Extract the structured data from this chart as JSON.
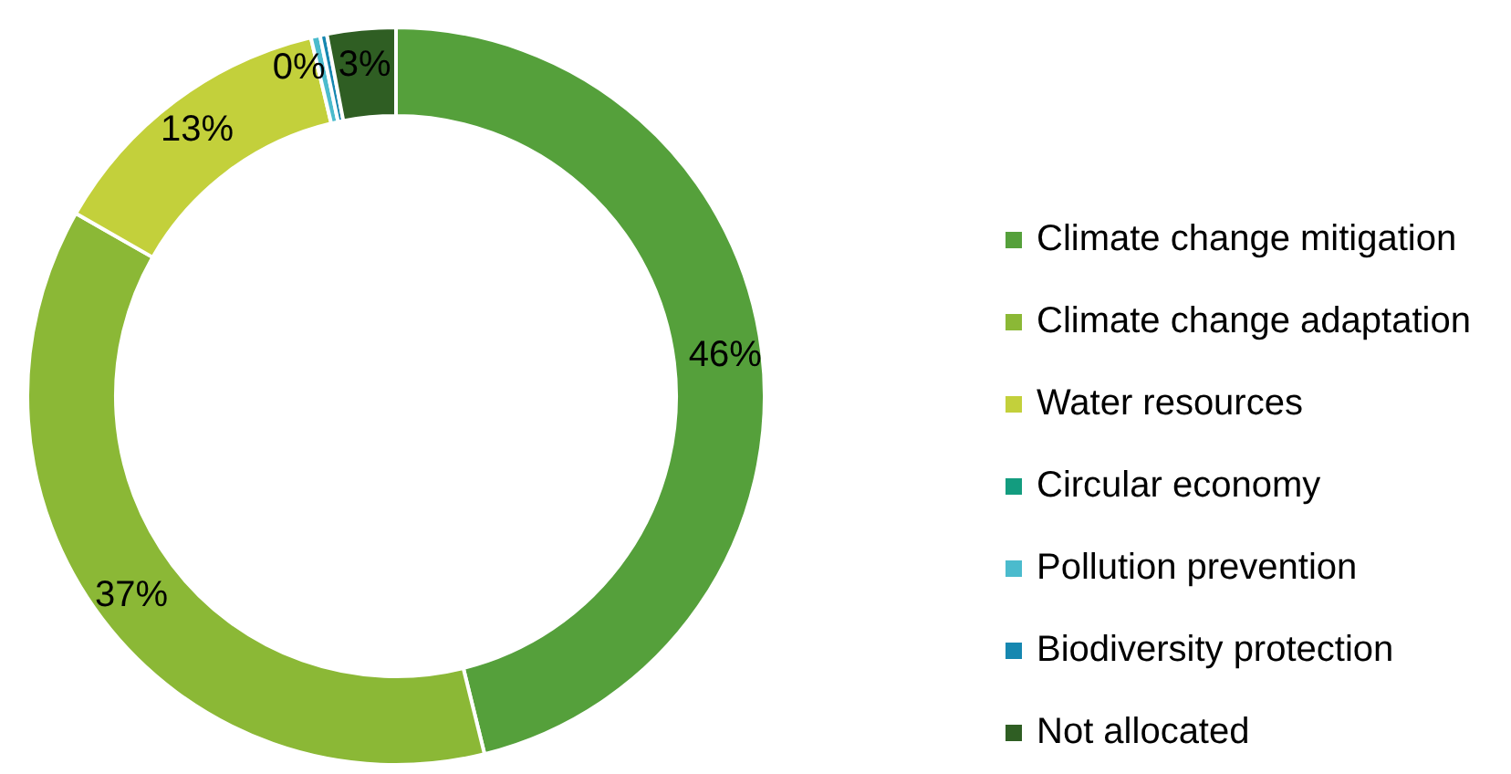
{
  "chart_data": {
    "type": "donut",
    "categories": [
      "Climate change mitigation",
      "Climate change adaptation",
      "Water resources",
      "Circular economy",
      "Pollution prevention",
      "Biodiversity protection",
      "Not allocated"
    ],
    "values": [
      46,
      37,
      13,
      0,
      0.4,
      0.3,
      3
    ],
    "colors": [
      "#55a03b",
      "#8bb836",
      "#c3d03b",
      "#139c7f",
      "#4bbbcd",
      "#1687b0",
      "#2f5e23"
    ],
    "value_labels": [
      "46%",
      "37%",
      "13%",
      null,
      "0%",
      null,
      "3%"
    ],
    "legend": "right"
  }
}
